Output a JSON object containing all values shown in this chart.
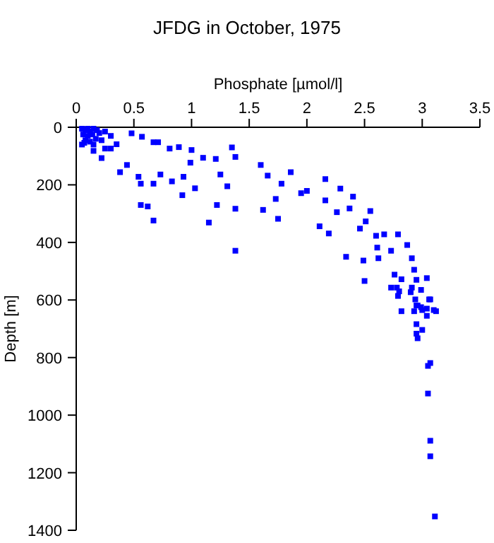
{
  "chart_data": {
    "type": "scatter",
    "title": "JFDG in October, 1975",
    "xlabel": "Phosphate [µmol/l]",
    "ylabel": "Depth [m]",
    "xlim": [
      0,
      3.5
    ],
    "xticks": [
      0,
      0.5,
      1,
      1.5,
      2,
      2.5,
      3,
      3.5
    ],
    "ylim": [
      1400,
      0
    ],
    "yticks": [
      0,
      200,
      400,
      600,
      800,
      1000,
      1200,
      1400
    ],
    "grid": false,
    "marker": "square",
    "series": [
      {
        "color": "#0000ff",
        "x": [
          0.05,
          0.08,
          0.1,
          0.12,
          0.15,
          0.18,
          0.06,
          0.1,
          0.14,
          0.2,
          0.08,
          0.12,
          0.17,
          0.22,
          0.25,
          0.3,
          0.05,
          0.15,
          0.48,
          0.57,
          0.67,
          0.71,
          0.81,
          0.89,
          1.0,
          1.35,
          1.38,
          1.21,
          1.1,
          0.99,
          0.93,
          0.83,
          0.73,
          0.67,
          0.56,
          0.56,
          0.62,
          0.67,
          0.92,
          1.03,
          1.15,
          1.38,
          1.22,
          1.38,
          1.6,
          1.62,
          1.73,
          1.75,
          1.66,
          0.38,
          0.22,
          0.3,
          0.35,
          0.25,
          0.07,
          0.15,
          0.44,
          0.54,
          1.25,
          1.31,
          1.86,
          1.78,
          1.95,
          2.0,
          2.16,
          2.29,
          2.16,
          2.26,
          2.4,
          2.37,
          2.51,
          2.55,
          2.11,
          2.19,
          2.46,
          2.6,
          2.67,
          2.79,
          2.61,
          2.73,
          2.87,
          2.34,
          2.49,
          2.62,
          2.91,
          2.93,
          2.76,
          2.5,
          2.82,
          2.95,
          3.04,
          2.78,
          2.9,
          2.99,
          3.07,
          2.95,
          3.0,
          3.1,
          2.73,
          2.8,
          2.79,
          2.91,
          2.94,
          3.06,
          2.96,
          2.99,
          2.82,
          2.93,
          3.04,
          3.12,
          3.04,
          2.95,
          3.0,
          2.95,
          2.96,
          3.07,
          3.05,
          3.05,
          3.07,
          3.07,
          3.11
        ],
        "values": [
          5,
          10,
          5,
          15,
          5,
          10,
          25,
          30,
          25,
          20,
          45,
          50,
          40,
          45,
          15,
          30,
          60,
          60,
          21,
          33,
          52,
          52,
          74,
          69,
          79,
          70,
          103,
          110,
          106,
          123,
          172,
          188,
          164,
          196,
          196,
          270,
          275,
          324,
          236,
          212,
          331,
          429,
          270,
          283,
          131,
          287,
          249,
          318,
          168,
          156,
          107,
          74,
          59,
          74,
          54,
          82,
          131,
          172,
          164,
          205,
          156,
          196,
          229,
          221,
          180,
          213,
          254,
          295,
          241,
          282,
          327,
          291,
          344,
          369,
          352,
          377,
          372,
          372,
          418,
          429,
          409,
          450,
          463,
          455,
          455,
          495,
          512,
          534,
          528,
          530,
          524,
          557,
          573,
          565,
          598,
          619,
          635,
          635,
          557,
          570,
          586,
          557,
          598,
          598,
          619,
          625,
          639,
          639,
          630,
          639,
          655,
          684,
          704,
          717,
          733,
          819,
          829,
          925,
          1089,
          1143,
          1352
        ]
      }
    ]
  }
}
